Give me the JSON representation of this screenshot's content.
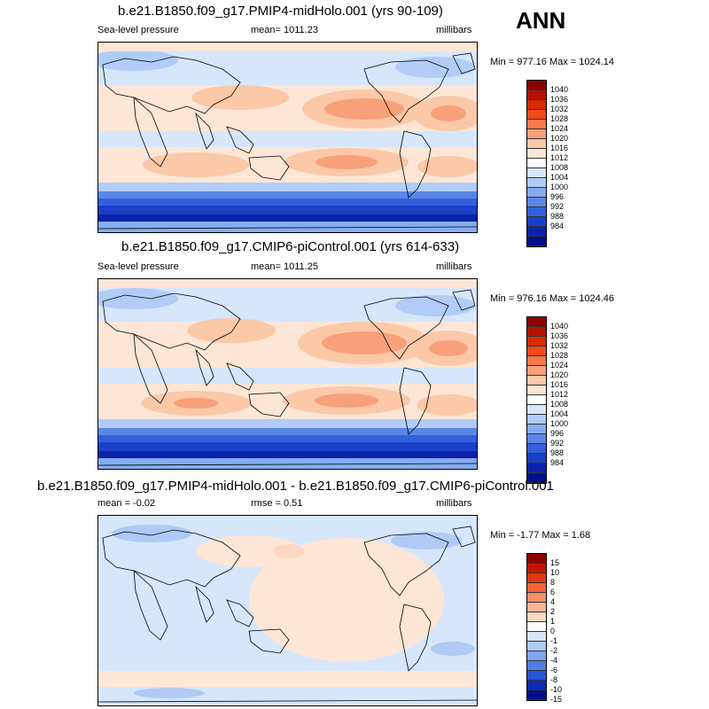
{
  "season": "ANN",
  "panels": [
    {
      "title": "b.e21.B1850.f09_g17.PMIP4-midHolo.001 (yrs 90-109)",
      "left_label": "Sea-level pressure",
      "center_label": "mean= 1011.23",
      "right_label": "millibars",
      "minmax": "Min = 977.16 Max = 1024.14",
      "colorbar": {
        "colors": [
          "#8b0000",
          "#b31200",
          "#d92a00",
          "#f04a1a",
          "#f5794a",
          "#f7a07a",
          "#fbc8a8",
          "#fde6d6",
          "#ffffff",
          "#d6e6fb",
          "#b0ccf7",
          "#86acf0",
          "#5b86e6",
          "#3360db",
          "#1a3fc9",
          "#0a22a8",
          "#00108a"
        ],
        "labels": [
          "1040",
          "1036",
          "1032",
          "1028",
          "1024",
          "1020",
          "1016",
          "1012",
          "1008",
          "1004",
          "1000",
          "996",
          "992",
          "988",
          "984"
        ]
      }
    },
    {
      "title": "b.e21.B1850.f09_g17.CMIP6-piControl.001 (yrs 614-633)",
      "left_label": "Sea-level pressure",
      "center_label": "mean= 1011.25",
      "right_label": "millibars",
      "minmax": "Min = 976.16 Max = 1024.46",
      "colorbar": {
        "colors": [
          "#8b0000",
          "#b31200",
          "#d92a00",
          "#f04a1a",
          "#f5794a",
          "#f7a07a",
          "#fbc8a8",
          "#fde6d6",
          "#ffffff",
          "#d6e6fb",
          "#b0ccf7",
          "#86acf0",
          "#5b86e6",
          "#3360db",
          "#1a3fc9",
          "#0a22a8",
          "#00108a"
        ],
        "labels": [
          "1040",
          "1036",
          "1032",
          "1028",
          "1024",
          "1020",
          "1016",
          "1012",
          "1008",
          "1004",
          "1000",
          "996",
          "992",
          "988",
          "984"
        ]
      }
    },
    {
      "title": "b.e21.B1850.f09_g17.PMIP4-midHolo.001 - b.e21.B1850.f09_g17.CMIP6-piControl.001",
      "left_label": "mean =  -0.02",
      "center_label": "rmse =   0.51",
      "right_label": "millibars",
      "minmax": "Min =  -1.77 Max =   1.68",
      "colorbar": {
        "colors": [
          "#8b0000",
          "#c01800",
          "#e03a10",
          "#f2643a",
          "#f78e66",
          "#fab596",
          "#fcd8c2",
          "#ffffff",
          "#d6e6fb",
          "#aecaf5",
          "#7fa6ee",
          "#4f7ce2",
          "#2654d2",
          "#0e2cb0",
          "#001088"
        ],
        "labels": [
          "15",
          "10",
          "8",
          "6",
          "4",
          "2",
          "1",
          "0",
          "-1",
          "-2",
          "-4",
          "-6",
          "-8",
          "-10",
          "-15"
        ]
      }
    }
  ]
}
